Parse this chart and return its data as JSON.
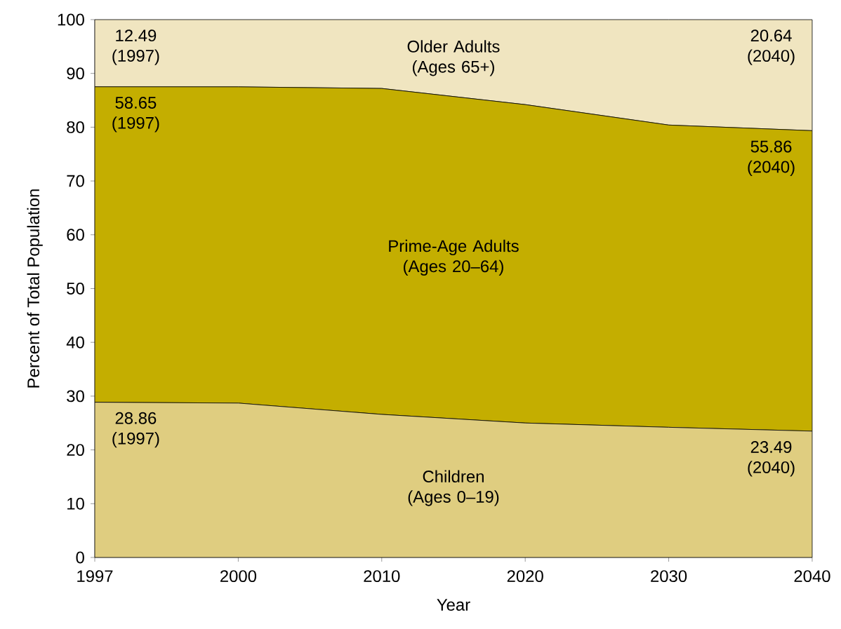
{
  "chart_data": {
    "type": "area",
    "stacked": true,
    "xlabel": "Year",
    "ylabel": "Percent of Total Population",
    "categories": [
      "1997",
      "2000",
      "2010",
      "2020",
      "2030",
      "2040"
    ],
    "ylim": [
      0,
      100
    ],
    "yticks": [
      0,
      10,
      20,
      30,
      40,
      50,
      60,
      70,
      80,
      90,
      100
    ],
    "series": [
      {
        "name": "Children (Ages 0–19)",
        "color": "#dfcd80",
        "values": [
          28.86,
          28.7,
          26.6,
          25.0,
          24.2,
          23.49
        ],
        "value_labels": [
          "28.86 (1997)",
          null,
          null,
          null,
          null,
          "23.49 (2040)"
        ]
      },
      {
        "name": "Prime-Age Adults (Ages 20–64)",
        "color": "#c4ae00",
        "values": [
          58.65,
          58.8,
          60.6,
          59.2,
          56.2,
          55.86
        ],
        "value_labels": [
          "58.65 (1997)",
          null,
          null,
          null,
          null,
          "55.86 (2040)"
        ]
      },
      {
        "name": "Older Adults (Ages 65+)",
        "color": "#f0e5c0",
        "values": [
          12.49,
          12.5,
          12.8,
          15.8,
          19.6,
          20.64
        ],
        "value_labels": [
          "12.49 (1997)",
          null,
          null,
          null,
          null,
          "20.64 (2040)"
        ]
      }
    ]
  }
}
